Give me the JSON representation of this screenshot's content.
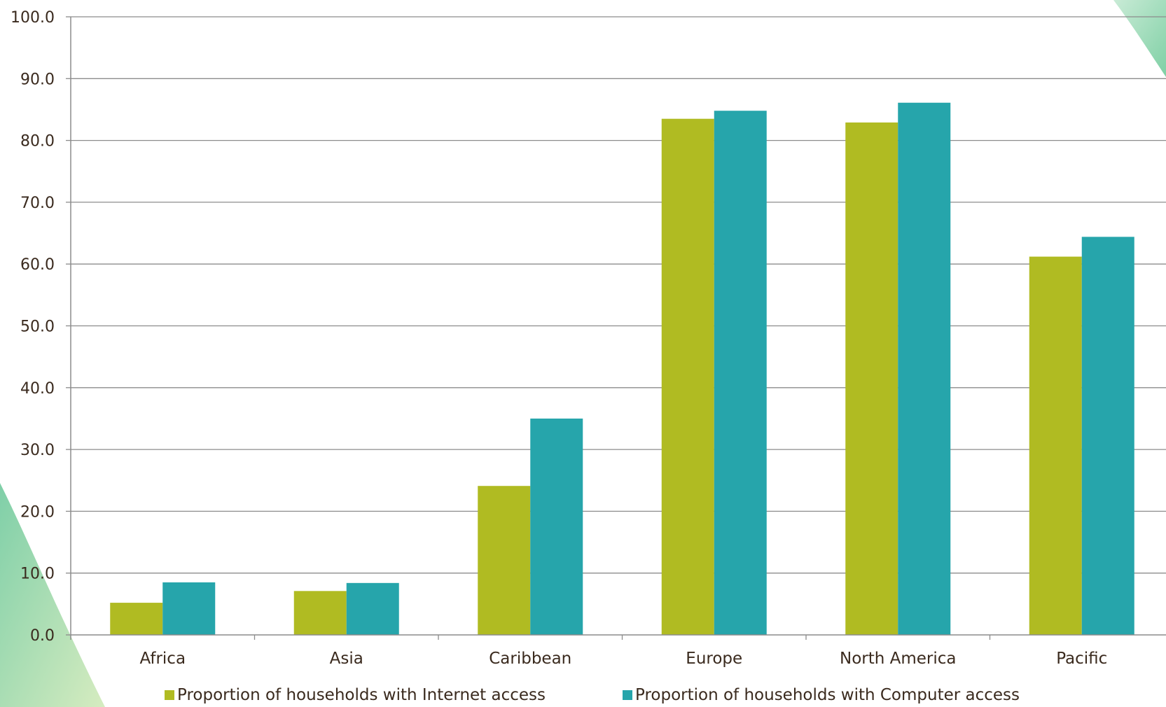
{
  "chart_data": {
    "type": "bar",
    "categories": [
      "Africa",
      "Asia",
      "Caribbean",
      "Europe",
      "North America",
      "Pacific"
    ],
    "series": [
      {
        "name": "Proportion of households with Internet access",
        "color": "#b0bb22",
        "values": [
          5.2,
          7.1,
          24.1,
          83.5,
          82.9,
          61.2
        ]
      },
      {
        "name": "Proportion of households with Computer access",
        "color": "#26a5ab",
        "values": [
          8.5,
          8.4,
          35.0,
          84.8,
          86.1,
          64.4
        ]
      }
    ],
    "ylim": [
      0,
      100
    ],
    "yticks": [
      "0.0",
      "10.0",
      "20.0",
      "30.0",
      "40.0",
      "50.0",
      "60.0",
      "70.0",
      "80.0",
      "90.0",
      "100.0"
    ],
    "grid": true,
    "legend_position": "bottom",
    "title": "",
    "xlabel": "",
    "ylabel": ""
  }
}
